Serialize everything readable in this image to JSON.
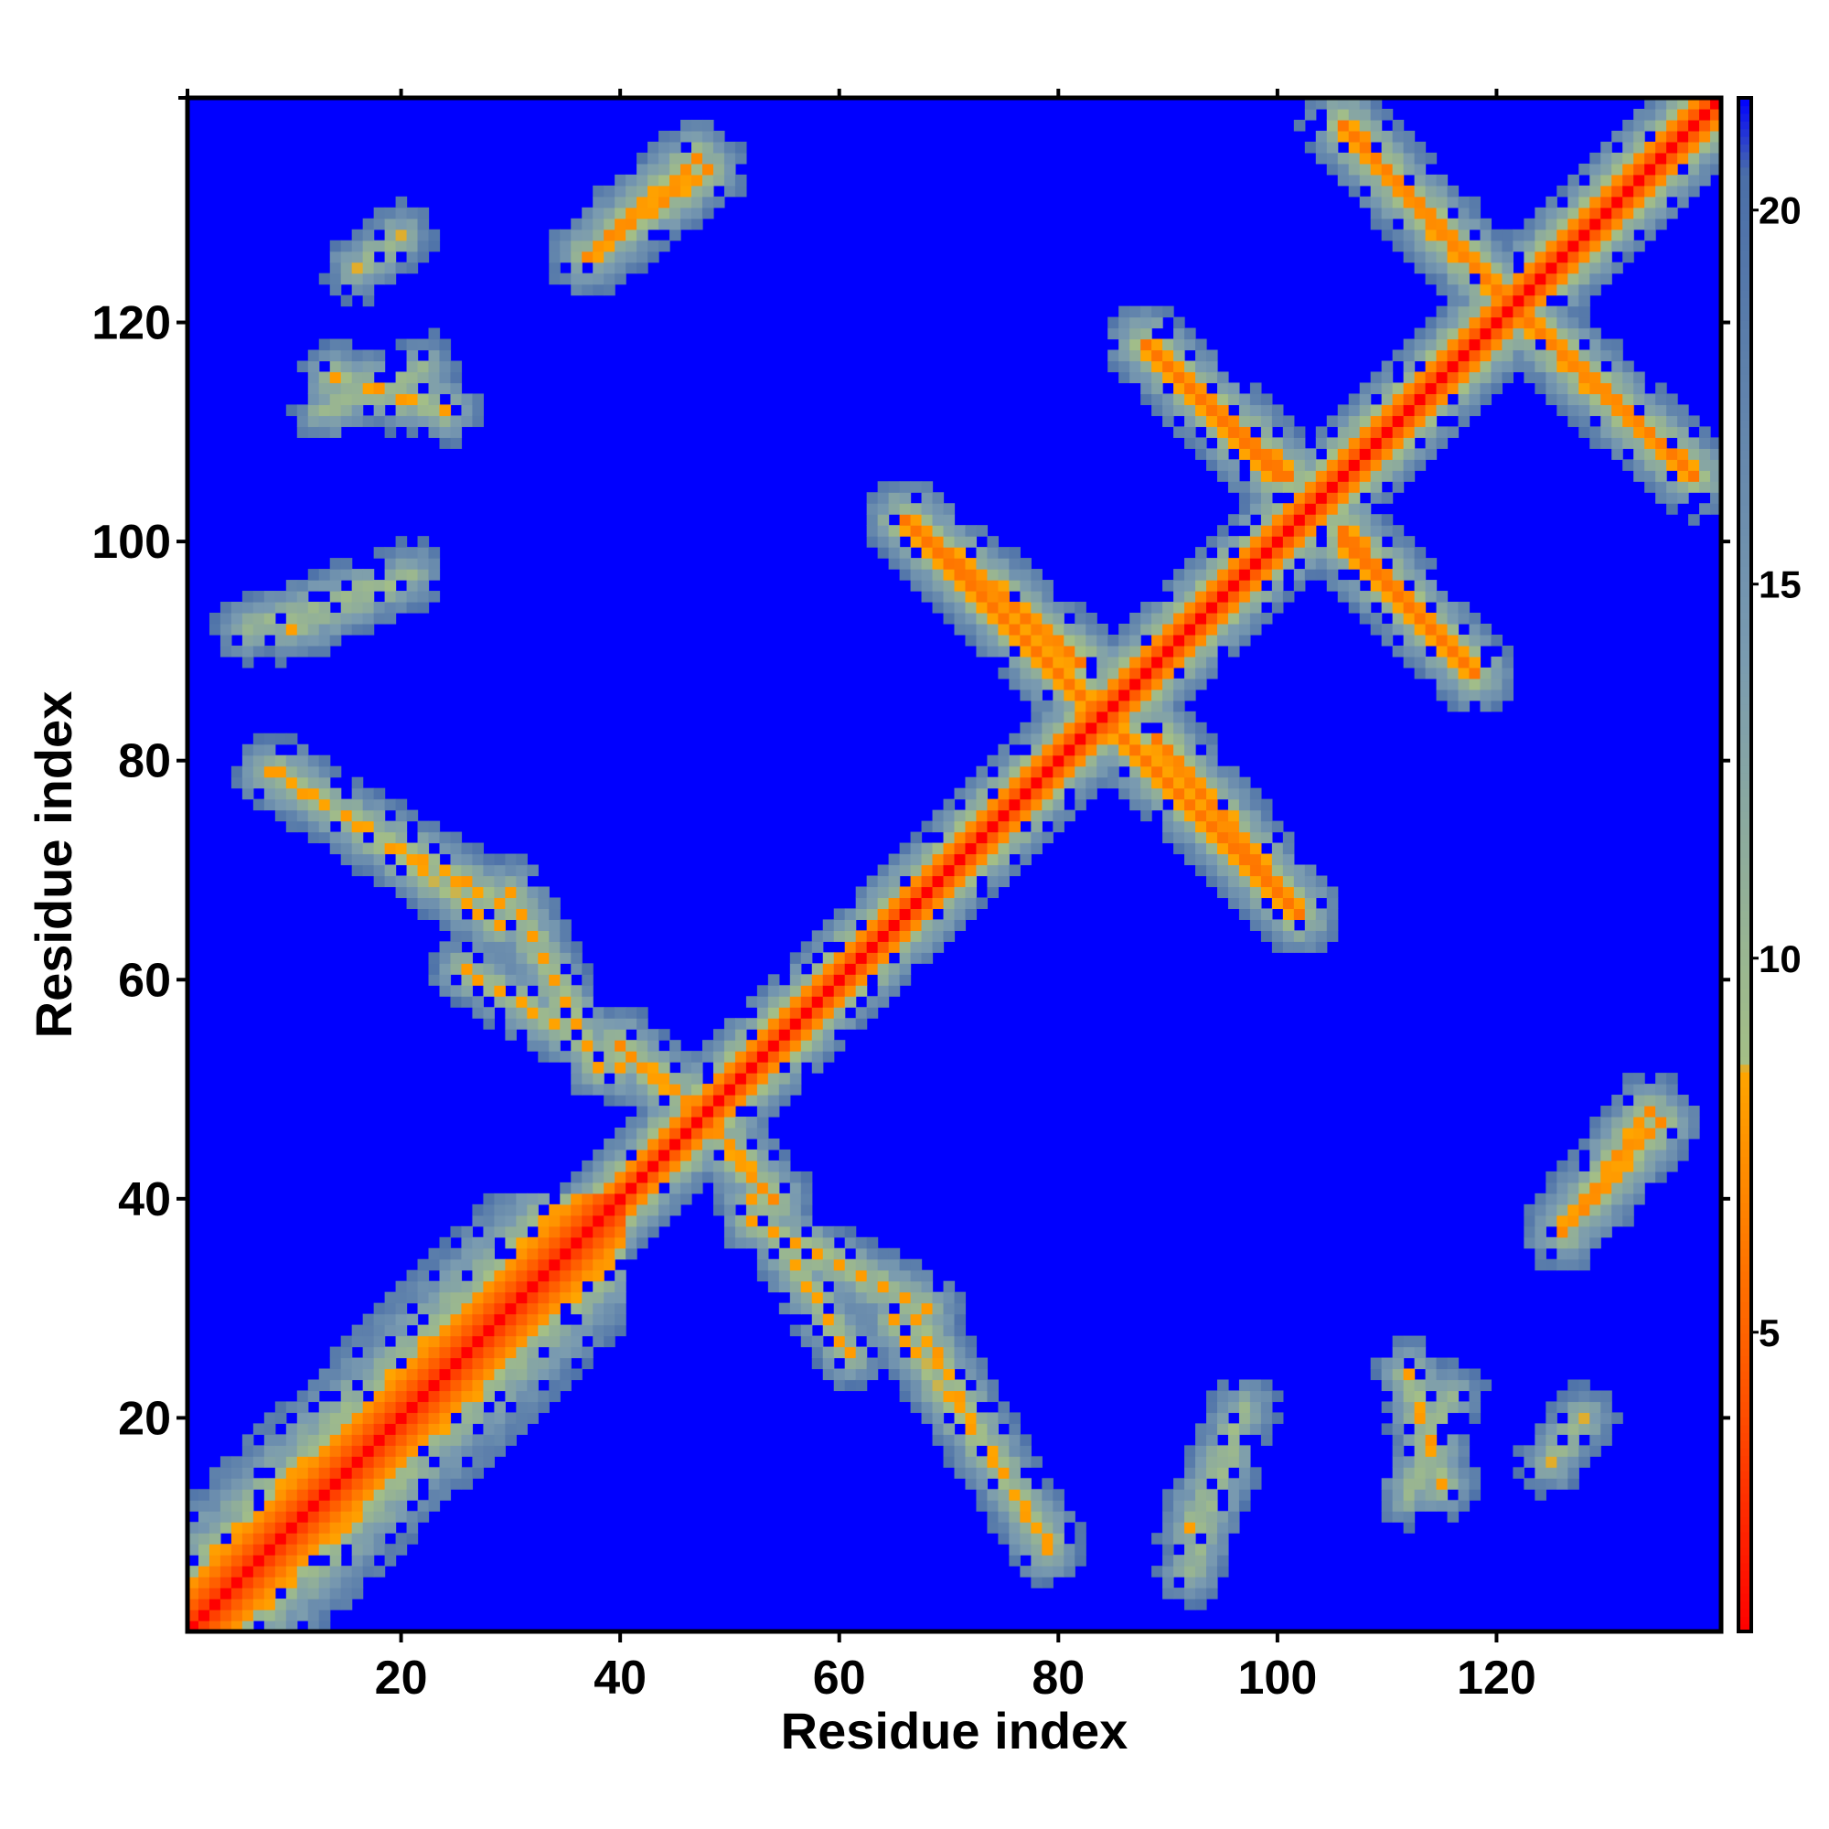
{
  "chart_data": {
    "type": "heatmap",
    "title": "",
    "xlabel": "Residue index",
    "ylabel": "Residue index",
    "xlim": [
      1,
      140
    ],
    "ylim": [
      1,
      140
    ],
    "x_ticks": [
      20,
      40,
      60,
      80,
      100,
      120
    ],
    "y_ticks": [
      20,
      40,
      60,
      80,
      100,
      120
    ],
    "colorbar": {
      "range": [
        1,
        21.5
      ],
      "ticks": [
        5,
        10,
        15,
        20
      ],
      "stops": [
        {
          "value": 1,
          "color": "#ff0000"
        },
        {
          "value": 4,
          "color": "#ff5000"
        },
        {
          "value": 8.5,
          "color": "#ffa500"
        },
        {
          "value": 8.6,
          "color": "#a4bf86"
        },
        {
          "value": 14,
          "color": "#7a9bb0"
        },
        {
          "value": 20.5,
          "color": "#4a6ea8"
        },
        {
          "value": 21.5,
          "color": "#0000ff"
        }
      ]
    },
    "background_value": 21.5,
    "background_color": "#0000ff",
    "description_note_free": true,
    "main_diagonal": {
      "from": 1,
      "to": 140
    },
    "contact_bands": [
      {
        "from": [
          66,
          102
        ],
        "to": [
          88,
          80
        ],
        "min_value": 6
      },
      {
        "from": [
          89,
          82
        ],
        "to": [
          102,
          66
        ],
        "min_value": 6
      },
      {
        "from": [
          89,
          117
        ],
        "to": [
          100,
          106
        ],
        "min_value": 6
      },
      {
        "from": [
          106,
          101
        ],
        "to": [
          118,
          88
        ],
        "min_value": 6
      },
      {
        "from": [
          106,
          138
        ],
        "to": [
          122,
          121
        ],
        "min_value": 6
      },
      {
        "from": [
          121,
          122
        ],
        "to": [
          138,
          106
        ],
        "min_value": 6
      },
      {
        "from": [
          37,
          126
        ],
        "to": [
          48,
          134
        ],
        "min_value": 7
      },
      {
        "from": [
          40,
          54
        ],
        "to": [
          47,
          48
        ],
        "min_value": 7
      },
      {
        "from": [
          48,
          47
        ],
        "to": [
          54,
          40
        ],
        "min_value": 7
      },
      {
        "from": [
          8,
          79
        ],
        "to": [
          29,
          67
        ],
        "min_value": 8
      },
      {
        "from": [
          26,
          61
        ],
        "to": [
          40,
          52
        ],
        "min_value": 8
      },
      {
        "from": [
          65,
          29
        ],
        "to": [
          79,
          9
        ],
        "min_value": 8
      },
      {
        "from": [
          52,
          38
        ],
        "to": [
          68,
          30
        ],
        "min_value": 8
      },
      {
        "from": [
          128,
          39
        ],
        "to": [
          135,
          47
        ],
        "min_value": 7
      },
      {
        "from": [
          14,
          115
        ],
        "to": [
          24,
          112
        ],
        "min_value": 8
      },
      {
        "from": [
          6,
          92
        ],
        "to": [
          18,
          96
        ],
        "min_value": 9
      },
      {
        "from": [
          92,
          10
        ],
        "to": [
          97,
          21
        ],
        "min_value": 9
      },
      {
        "from": [
          112,
          13
        ],
        "to": [
          116,
          22
        ],
        "min_value": 9
      },
      {
        "from": [
          125,
          16
        ],
        "to": [
          128,
          20
        ],
        "min_value": 9
      }
    ]
  }
}
